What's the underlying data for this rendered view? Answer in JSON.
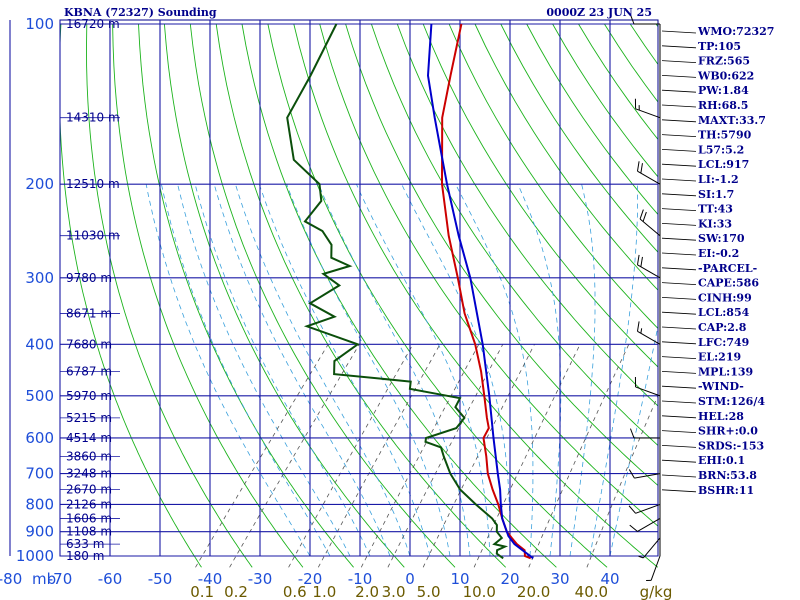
{
  "chart_data": {
    "type": "line",
    "title": "KBNA (72327) Sounding",
    "timestamp": "0000Z 23 JUN 25",
    "y_axis_unit": "mb",
    "pressure_ticks": [
      100,
      200,
      300,
      400,
      500,
      600,
      700,
      800,
      900,
      1000
    ],
    "x_ticks": [
      -80,
      -70,
      -60,
      -50,
      -40,
      -30,
      -20,
      -10,
      0,
      10,
      20,
      30,
      40
    ],
    "mixing_ratio_unit": "g/kg",
    "mixing_ratio_labels": [
      "0.1",
      "0.2",
      "0.6",
      "1.0",
      "2.0",
      "3.0",
      "5.0",
      "10.0",
      "20.0",
      "40.0"
    ],
    "mixing_ratio_values": [
      0.1,
      0.2,
      0.6,
      1.0,
      2.0,
      3.0,
      5.0,
      10.0,
      20.0,
      40.0
    ],
    "height_labels": [
      {
        "p": 100,
        "text": "16720 m"
      },
      {
        "p": 150,
        "text": "14310 m"
      },
      {
        "p": 200,
        "text": "12510 m"
      },
      {
        "p": 250,
        "text": "11030 m"
      },
      {
        "p": 300,
        "text": "9780 m"
      },
      {
        "p": 350,
        "text": "8671 m"
      },
      {
        "p": 400,
        "text": "7680 m"
      },
      {
        "p": 450,
        "text": "6787 m"
      },
      {
        "p": 500,
        "text": "5970 m"
      },
      {
        "p": 550,
        "text": "5215 m"
      },
      {
        "p": 600,
        "text": "4514 m"
      },
      {
        "p": 650,
        "text": "3860 m"
      },
      {
        "p": 700,
        "text": "3248 m"
      },
      {
        "p": 750,
        "text": "2670 m"
      },
      {
        "p": 800,
        "text": "2126 m"
      },
      {
        "p": 850,
        "text": "1606 m"
      },
      {
        "p": 900,
        "text": "1108 m"
      },
      {
        "p": 950,
        "text": "633 m"
      },
      {
        "p": 1000,
        "text": "180 m"
      }
    ],
    "series": [
      {
        "id": "temperature",
        "color": "#cc0000",
        "points": [
          [
            1010,
            24.5
          ],
          [
            1000,
            23.0
          ],
          [
            975,
            22.0
          ],
          [
            950,
            19.5
          ],
          [
            925,
            17.5
          ],
          [
            900,
            15.5
          ],
          [
            850,
            12.5
          ],
          [
            800,
            9.5
          ],
          [
            750,
            6.0
          ],
          [
            700,
            2.5
          ],
          [
            650,
            -0.5
          ],
          [
            600,
            -4.0
          ],
          [
            575,
            -4.5
          ],
          [
            550,
            -6.5
          ],
          [
            500,
            -10.5
          ],
          [
            450,
            -15.0
          ],
          [
            400,
            -20.5
          ],
          [
            350,
            -27.5
          ],
          [
            300,
            -34.5
          ],
          [
            250,
            -43.0
          ],
          [
            200,
            -52.5
          ],
          [
            150,
            -63.0
          ],
          [
            125,
            -68.0
          ],
          [
            100,
            -74.0
          ]
        ]
      },
      {
        "id": "dewpoint",
        "color": "#0b4f0b",
        "points": [
          [
            1010,
            19.0
          ],
          [
            990,
            17.0
          ],
          [
            975,
            16.5
          ],
          [
            960,
            17.5
          ],
          [
            950,
            15.0
          ],
          [
            925,
            15.5
          ],
          [
            900,
            13.5
          ],
          [
            875,
            12.5
          ],
          [
            850,
            10.5
          ],
          [
            800,
            5.0
          ],
          [
            750,
            -0.5
          ],
          [
            700,
            -5.0
          ],
          [
            650,
            -9.0
          ],
          [
            625,
            -11.0
          ],
          [
            610,
            -15.0
          ],
          [
            600,
            -15.5
          ],
          [
            575,
            -11.0
          ],
          [
            550,
            -11.0
          ],
          [
            525,
            -14.5
          ],
          [
            505,
            -15.0
          ],
          [
            485,
            -26.5
          ],
          [
            470,
            -27.5
          ],
          [
            455,
            -44.0
          ],
          [
            430,
            -46.0
          ],
          [
            400,
            -44.0
          ],
          [
            370,
            -57.0
          ],
          [
            355,
            -53.0
          ],
          [
            335,
            -60.0
          ],
          [
            310,
            -57.0
          ],
          [
            295,
            -62.0
          ],
          [
            285,
            -58.0
          ],
          [
            275,
            -63.0
          ],
          [
            260,
            -65.0
          ],
          [
            245,
            -69.0
          ],
          [
            235,
            -74.0
          ],
          [
            215,
            -74.0
          ],
          [
            200,
            -77.0
          ],
          [
            180,
            -86.0
          ],
          [
            150,
            -94.0
          ],
          [
            125,
            -96.0
          ],
          [
            100,
            -99.0
          ]
        ]
      },
      {
        "id": "parcel",
        "color": "#0000cc",
        "points": [
          [
            1010,
            25.0
          ],
          [
            950,
            19.0
          ],
          [
            917,
            16.5
          ],
          [
            850,
            12.5
          ],
          [
            800,
            10.0
          ],
          [
            750,
            7.5
          ],
          [
            700,
            4.5
          ],
          [
            600,
            -2.0
          ],
          [
            500,
            -9.5
          ],
          [
            400,
            -19.0
          ],
          [
            300,
            -32.0
          ],
          [
            250,
            -41.0
          ],
          [
            200,
            -51.5
          ],
          [
            150,
            -64.5
          ],
          [
            125,
            -72.5
          ],
          [
            100,
            -80.0
          ]
        ]
      }
    ],
    "indices": [
      "WMO:72327",
      "TP:105",
      "FRZ:565",
      "WB0:622",
      "PW:1.84",
      "RH:68.5",
      "MAXT:33.7",
      "TH:5790",
      "L57:5.2",
      "LCL:917",
      "LI:-1.2",
      "SI:1.7",
      "TT:43",
      "KI:33",
      "SW:170",
      "EI:-0.2",
      "-PARCEL-",
      "CAPE:586",
      "CINH:99",
      "LCL:854",
      "CAP:2.8",
      "LFC:749",
      "EL:219",
      "MPL:139",
      "-WIND-",
      "STM:126/4",
      "HEL:28",
      "SHR+:0.0",
      "SRDS:-153",
      "EHI:0.1",
      "BRN:53.8",
      "BSHR:11"
    ],
    "wind_barbs": [
      {
        "p": 1000,
        "dir": 200,
        "spd": 5
      },
      {
        "p": 925,
        "dir": 220,
        "spd": 5
      },
      {
        "p": 850,
        "dir": 240,
        "spd": 10
      },
      {
        "p": 800,
        "dir": 250,
        "spd": 10
      },
      {
        "p": 700,
        "dir": 260,
        "spd": 10
      },
      {
        "p": 600,
        "dir": 270,
        "spd": 10
      },
      {
        "p": 500,
        "dir": 290,
        "spd": 10
      },
      {
        "p": 400,
        "dir": 300,
        "spd": 15
      },
      {
        "p": 300,
        "dir": 300,
        "spd": 20
      },
      {
        "p": 250,
        "dir": 310,
        "spd": 20
      },
      {
        "p": 200,
        "dir": 300,
        "spd": 20
      },
      {
        "p": 150,
        "dir": 290,
        "spd": 15
      },
      {
        "p": 100,
        "dir": 270,
        "spd": 10
      }
    ]
  }
}
